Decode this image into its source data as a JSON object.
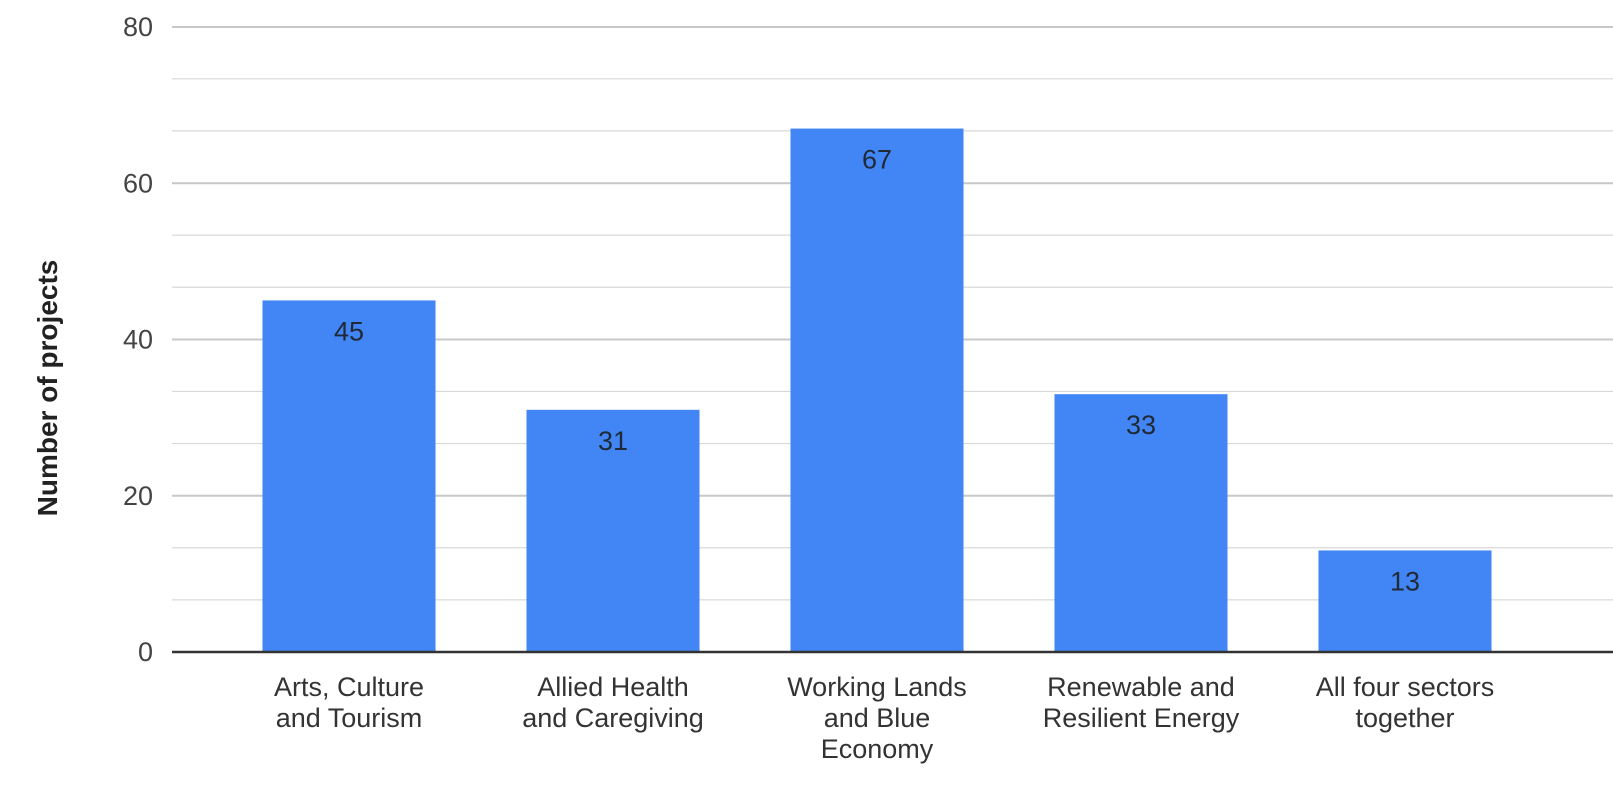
{
  "chart_data": {
    "type": "bar",
    "title": "",
    "xlabel": "",
    "ylabel": "Number of projects",
    "ylim": [
      0,
      80
    ],
    "y_ticks": [
      0,
      20,
      40,
      60,
      80
    ],
    "minor_grid_step": 6.67,
    "grid": true,
    "legend": "none",
    "categories": [
      [
        "Arts, Culture",
        "and Tourism"
      ],
      [
        "Allied Health",
        "and Caregiving"
      ],
      [
        "Working Lands",
        "and Blue",
        "Economy"
      ],
      [
        "Renewable and",
        "Resilient Energy"
      ],
      [
        "All  four sectors",
        "together"
      ]
    ],
    "values": [
      45,
      31,
      67,
      33,
      13
    ],
    "data_labels": [
      "45",
      "31",
      "67",
      "33",
      "13"
    ],
    "colors": {
      "bar": "#4285f4",
      "grid": "#d9d9d9",
      "axis": "#333333"
    }
  }
}
